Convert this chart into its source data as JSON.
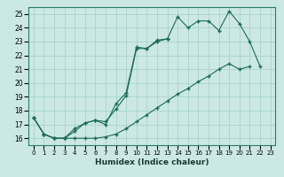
{
  "xlabel": "Humidex (Indice chaleur)",
  "bg_color": "#cce8e4",
  "grid_color": "#a8d4cf",
  "line_color": "#1a6b5a",
  "xlim": [
    -0.5,
    23.5
  ],
  "ylim": [
    15.5,
    25.5
  ],
  "xticks": [
    0,
    1,
    2,
    3,
    4,
    5,
    6,
    7,
    8,
    9,
    10,
    11,
    12,
    13,
    14,
    15,
    16,
    17,
    18,
    19,
    20,
    21,
    22,
    23
  ],
  "yticks": [
    16,
    17,
    18,
    19,
    20,
    21,
    22,
    23,
    24,
    25
  ],
  "line1_y": [
    17.5,
    16.3,
    16.0,
    16.0,
    16.7,
    17.1,
    17.3,
    17.0,
    18.5,
    19.3,
    22.6,
    22.5,
    23.1,
    23.2,
    24.8,
    24.0,
    24.5,
    24.5,
    23.8,
    25.2,
    24.3,
    23.0,
    21.2,
    null
  ],
  "line2_y": [
    17.5,
    16.3,
    16.0,
    16.0,
    16.5,
    17.1,
    17.3,
    17.2,
    18.1,
    19.1,
    22.5,
    22.5,
    23.0,
    23.2,
    null,
    null,
    null,
    null,
    null,
    null,
    null,
    null,
    null,
    null
  ],
  "line3_y": [
    17.5,
    16.3,
    16.0,
    16.0,
    16.0,
    16.0,
    16.0,
    16.1,
    16.3,
    16.7,
    17.2,
    17.7,
    18.2,
    18.7,
    19.2,
    19.6,
    20.1,
    20.5,
    21.0,
    21.4,
    21.0,
    21.2,
    null,
    null
  ]
}
